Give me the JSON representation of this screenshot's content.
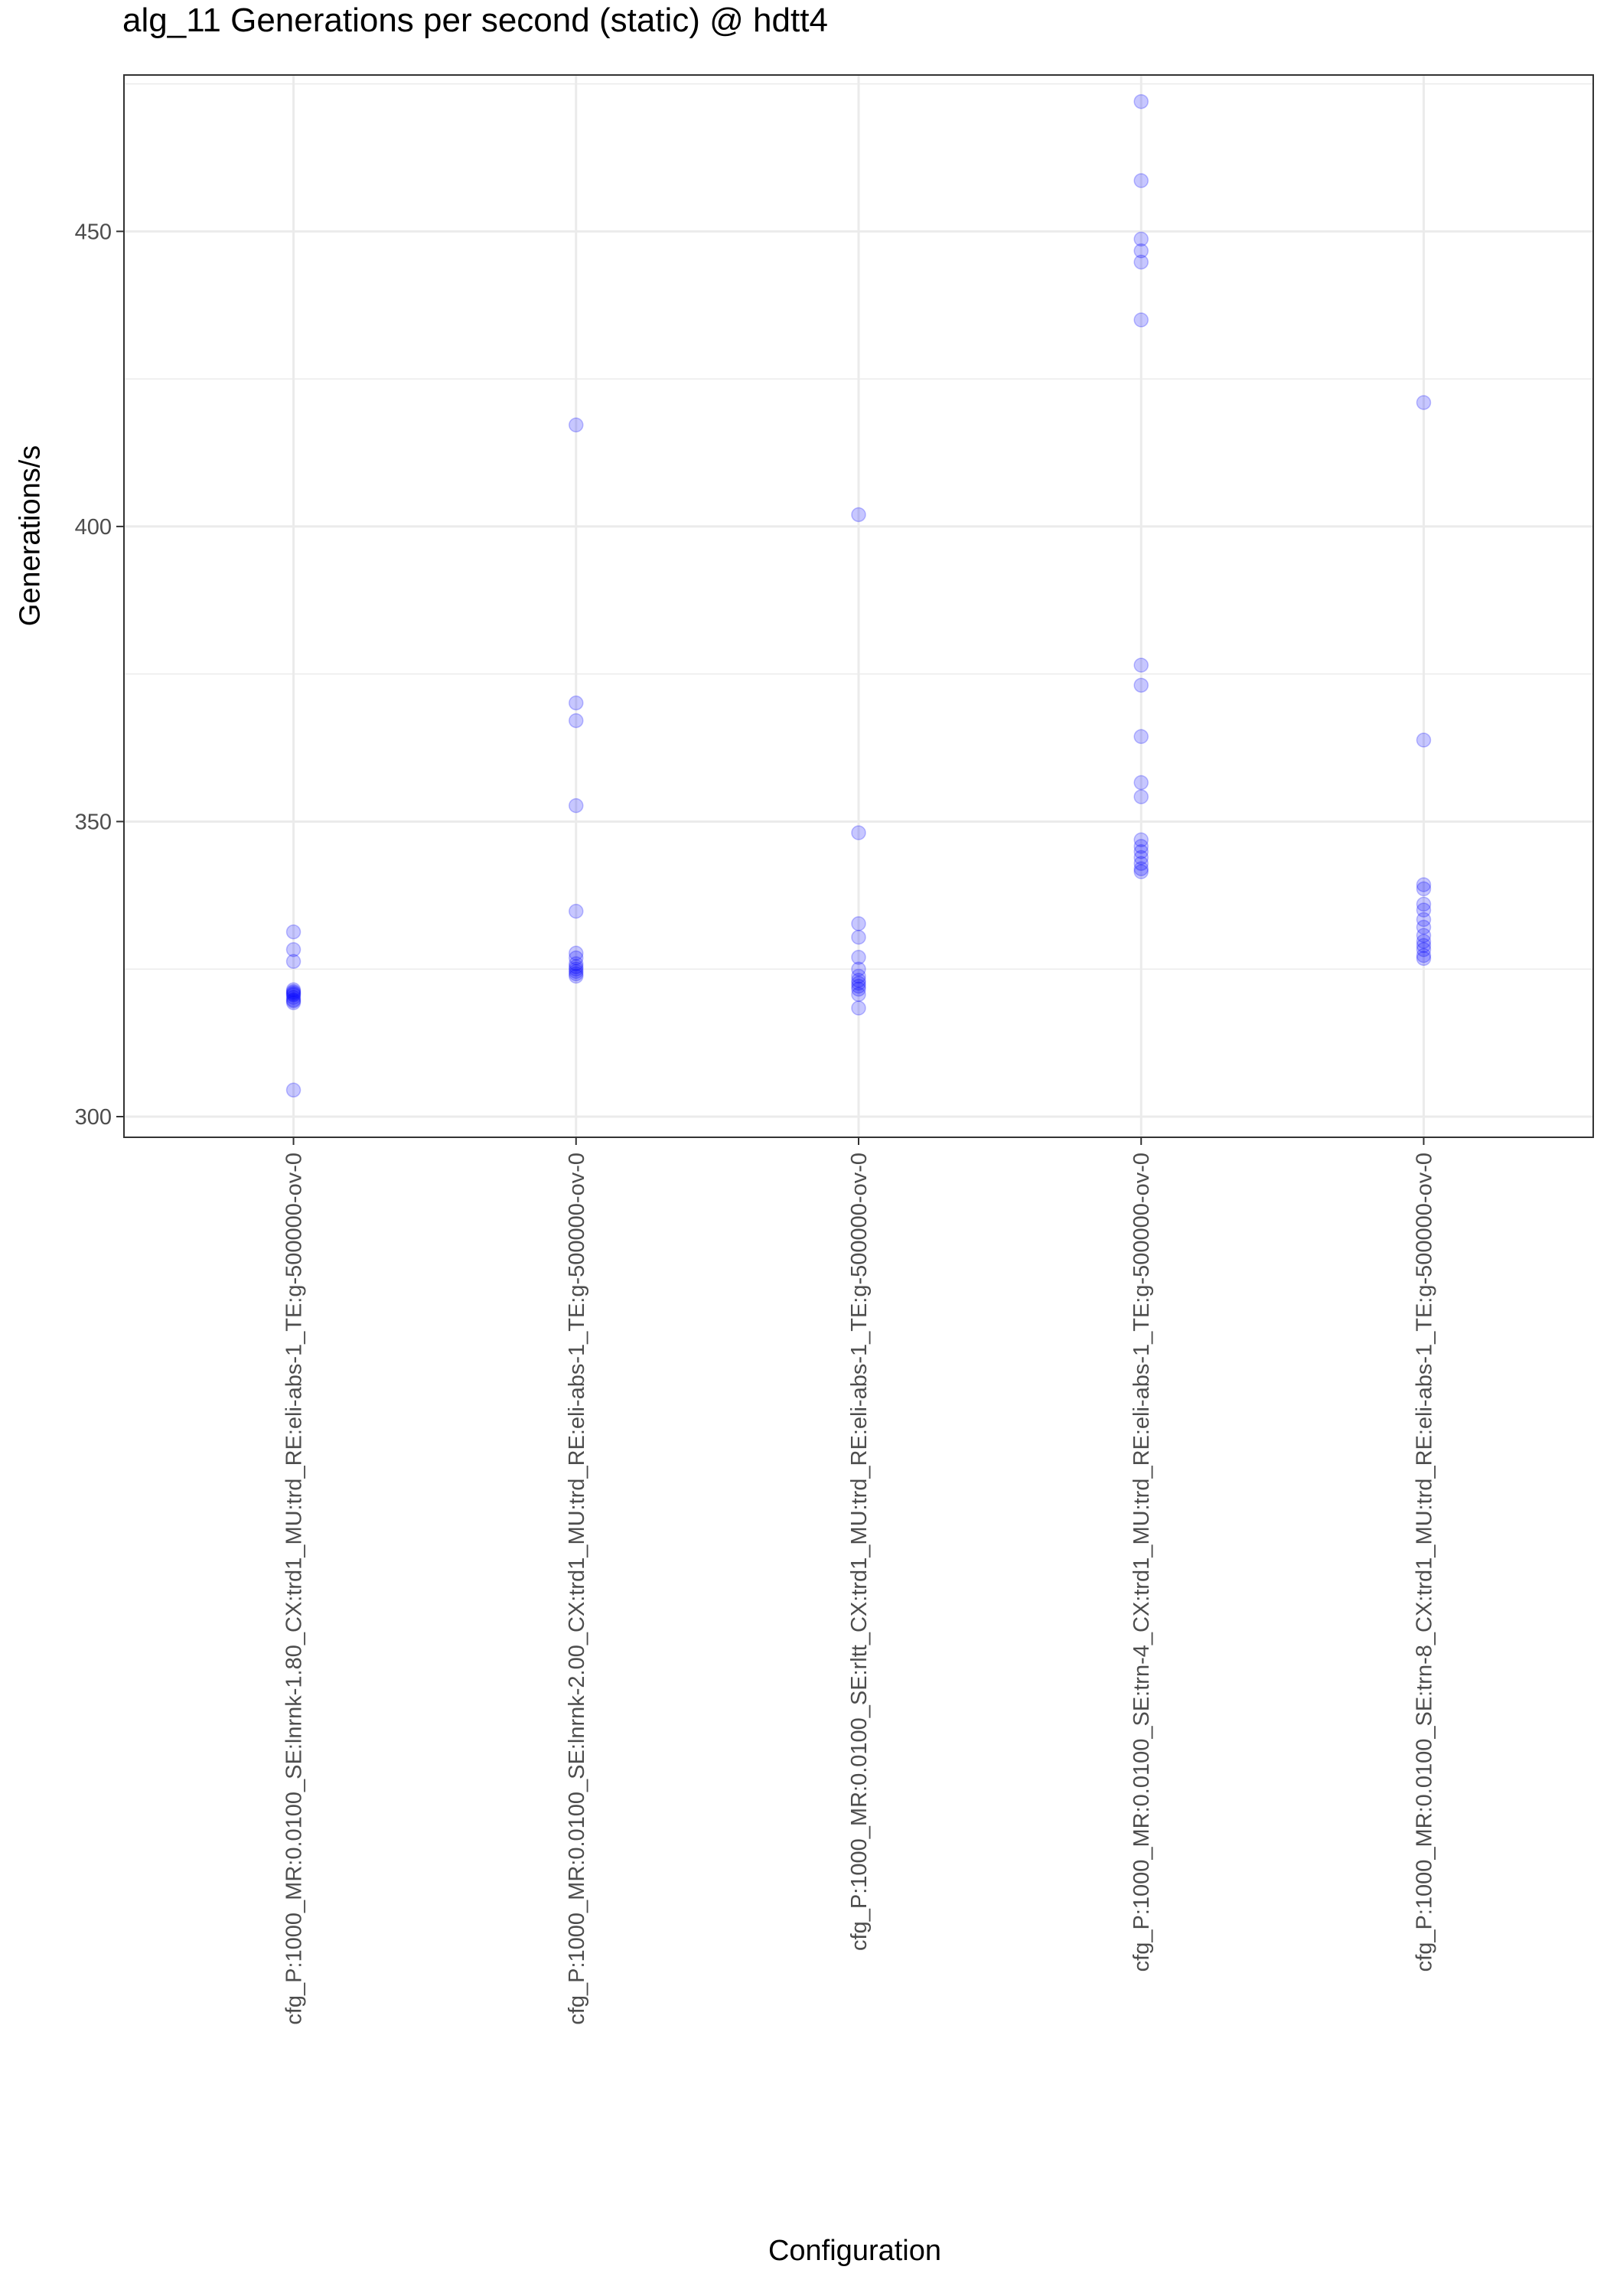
{
  "chart_data": {
    "type": "scatter",
    "title": "alg_11 Generations per second (static) @ hdtt4",
    "xlabel": "Configuration",
    "ylabel": "Generations/s",
    "ylim": [
      296.5,
      476.5
    ],
    "yticks": [
      300,
      350,
      400,
      450
    ],
    "grid": true,
    "point_color": "#0000ff",
    "point_alpha": 0.22,
    "categories": [
      "cfg_P:1000_MR:0.0100_SE:lnrnk-1.80_CX:trd1_MU:trd_RE:eli-abs-1_TE:g-500000-ov-0",
      "cfg_P:1000_MR:0.0100_SE:lnrnk-2.00_CX:trd1_MU:trd_RE:eli-abs-1_TE:g-500000-ov-0",
      "cfg_P:1000_MR:0.0100_SE:rltt_CX:trd1_MU:trd_RE:eli-abs-1_TE:g-500000-ov-0",
      "cfg_P:1000_MR:0.0100_SE:trn-4_CX:trd1_MU:trd_RE:eli-abs-1_TE:g-500000-ov-0",
      "cfg_P:1000_MR:0.0100_SE:trn-8_CX:trd1_MU:trd_RE:eli-abs-1_TE:g-500000-ov-0"
    ],
    "series": [
      {
        "values": [
          331.3,
          328.3,
          326.3,
          321.5,
          321.0,
          320.6,
          320.2,
          319.8,
          319.3,
          320.8,
          321.2,
          319.6,
          304.5
        ]
      },
      {
        "values": [
          417.2,
          370.1,
          367.1,
          352.7,
          334.8,
          327.7,
          326.9,
          325.9,
          325.4,
          325.0,
          324.6,
          324.2,
          323.8
        ]
      },
      {
        "values": [
          402.0,
          348.1,
          332.7,
          330.4,
          327.0,
          325.0,
          323.8,
          323.1,
          322.6,
          322.1,
          321.6,
          320.7,
          318.4
        ]
      },
      {
        "values": [
          472.0,
          458.6,
          448.7,
          446.7,
          444.8,
          435.0,
          376.5,
          373.1,
          364.4,
          356.6,
          354.2,
          346.9,
          345.8,
          344.9,
          343.9,
          342.9,
          342.0,
          341.5
        ]
      },
      {
        "values": [
          421.0,
          363.8,
          339.3,
          338.6,
          336.0,
          335.0,
          333.4,
          332.1,
          330.7,
          329.7,
          329.0,
          328.3,
          327.3,
          326.8
        ]
      }
    ]
  }
}
